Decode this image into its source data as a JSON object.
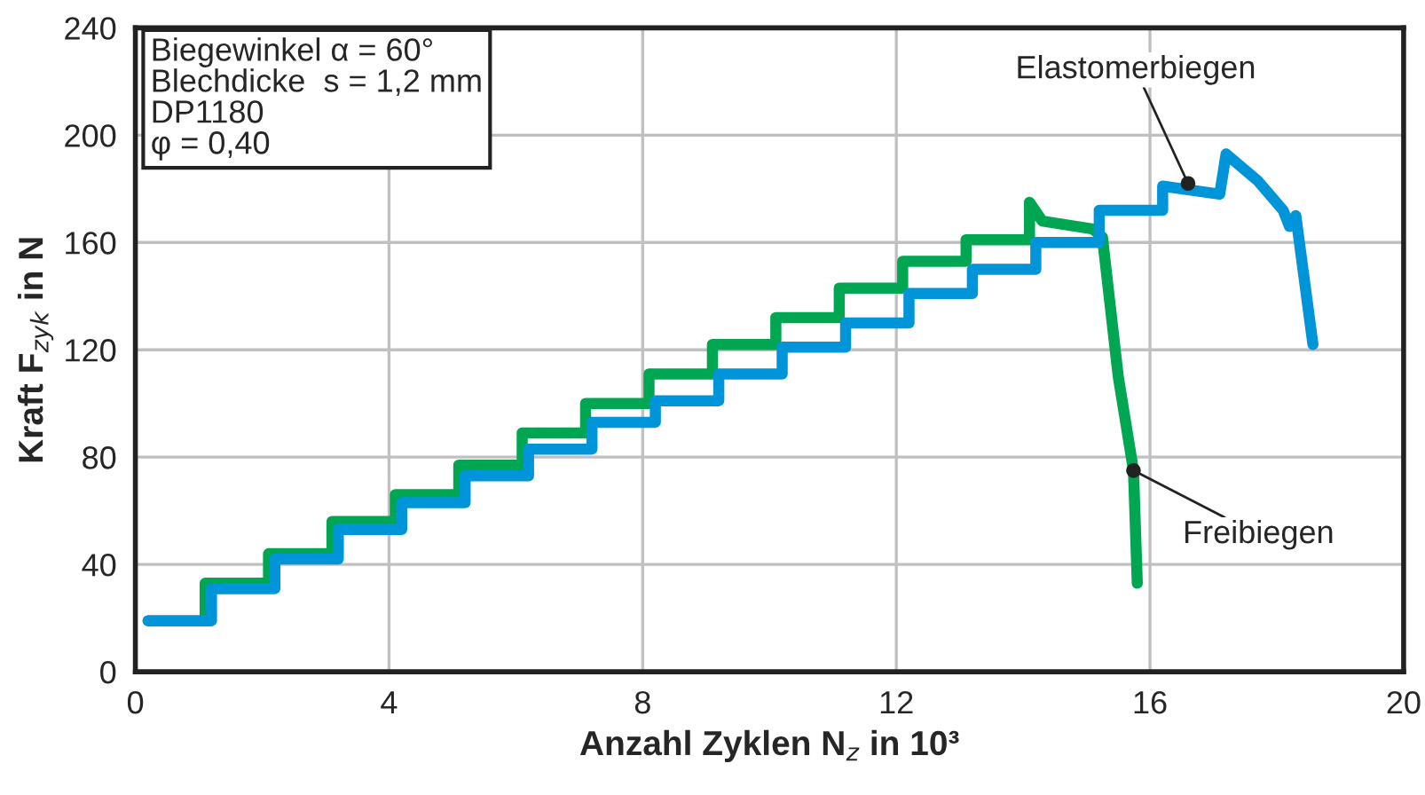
{
  "chart_data": {
    "type": "line",
    "xlabel": "Anzahl Zyklen N$_{z}$ in 10³",
    "ylabel": "Kraft F$_{zyk}$ in N",
    "series": [
      {
        "color": "#00a651",
        "x": [
          0.2,
          1.1,
          1.1,
          2.1,
          2.1,
          3.1,
          3.1,
          4.1,
          4.1,
          5.1,
          5.1,
          6.1,
          6.1,
          7.1,
          7.1,
          8.1,
          8.1,
          9.1,
          9.1,
          10.1,
          10.1,
          11.1,
          11.1,
          12.1,
          12.1,
          13.1,
          13.1,
          14.1,
          14.1,
          14.3,
          15.1,
          15.25,
          15.5,
          15.74,
          15.8
        ],
        "values": [
          19,
          19,
          33,
          33,
          44,
          44,
          56,
          56,
          66,
          66,
          77,
          77,
          89,
          89,
          100,
          100,
          111,
          111,
          122,
          122,
          132,
          132,
          143,
          143,
          153,
          153,
          161,
          161,
          175,
          168,
          165,
          162,
          110,
          75,
          33
        ]
      },
      {
        "color": "#0095d9",
        "x": [
          0.2,
          1.2,
          1.2,
          2.2,
          2.2,
          3.2,
          3.2,
          4.2,
          4.2,
          5.2,
          5.2,
          6.2,
          6.2,
          7.2,
          7.2,
          8.2,
          8.2,
          9.2,
          9.2,
          10.2,
          10.2,
          11.2,
          11.2,
          12.2,
          12.2,
          13.2,
          13.2,
          14.2,
          14.2,
          15.2,
          15.2,
          16.2,
          16.2,
          17.1,
          17.2,
          17.7,
          18.1,
          18.2,
          18.3,
          18.57
        ],
        "values": [
          19,
          19,
          31,
          31,
          42,
          42,
          53,
          53,
          63,
          63,
          73,
          73,
          83,
          83,
          93,
          93,
          101,
          101,
          111,
          111,
          121,
          121,
          130,
          130,
          141,
          141,
          150,
          150,
          160,
          160,
          172,
          172,
          181,
          178,
          193,
          183,
          172,
          166,
          170,
          122
        ]
      }
    ],
    "annotations": [
      "Biegewinkel α = 60°\nBlechdicke  s = 1,2 mm\nDP1180\nφ = 0,40",
      {
        "text": "Elastomerbiegen",
        "x": 16.6,
        "y": 182
      },
      {
        "text": "Freibiegen",
        "x": 15.74,
        "y": 75
      }
    ],
    "xlim": [
      0,
      20
    ],
    "xticks": [
      0,
      4,
      8,
      12,
      16,
      20
    ],
    "ylim": [
      0,
      240
    ],
    "yticks": [
      0,
      40,
      80,
      120,
      160,
      200,
      240
    ],
    "grid": true,
    "legend": false,
    "marker": "none",
    "line_style": "solid"
  }
}
